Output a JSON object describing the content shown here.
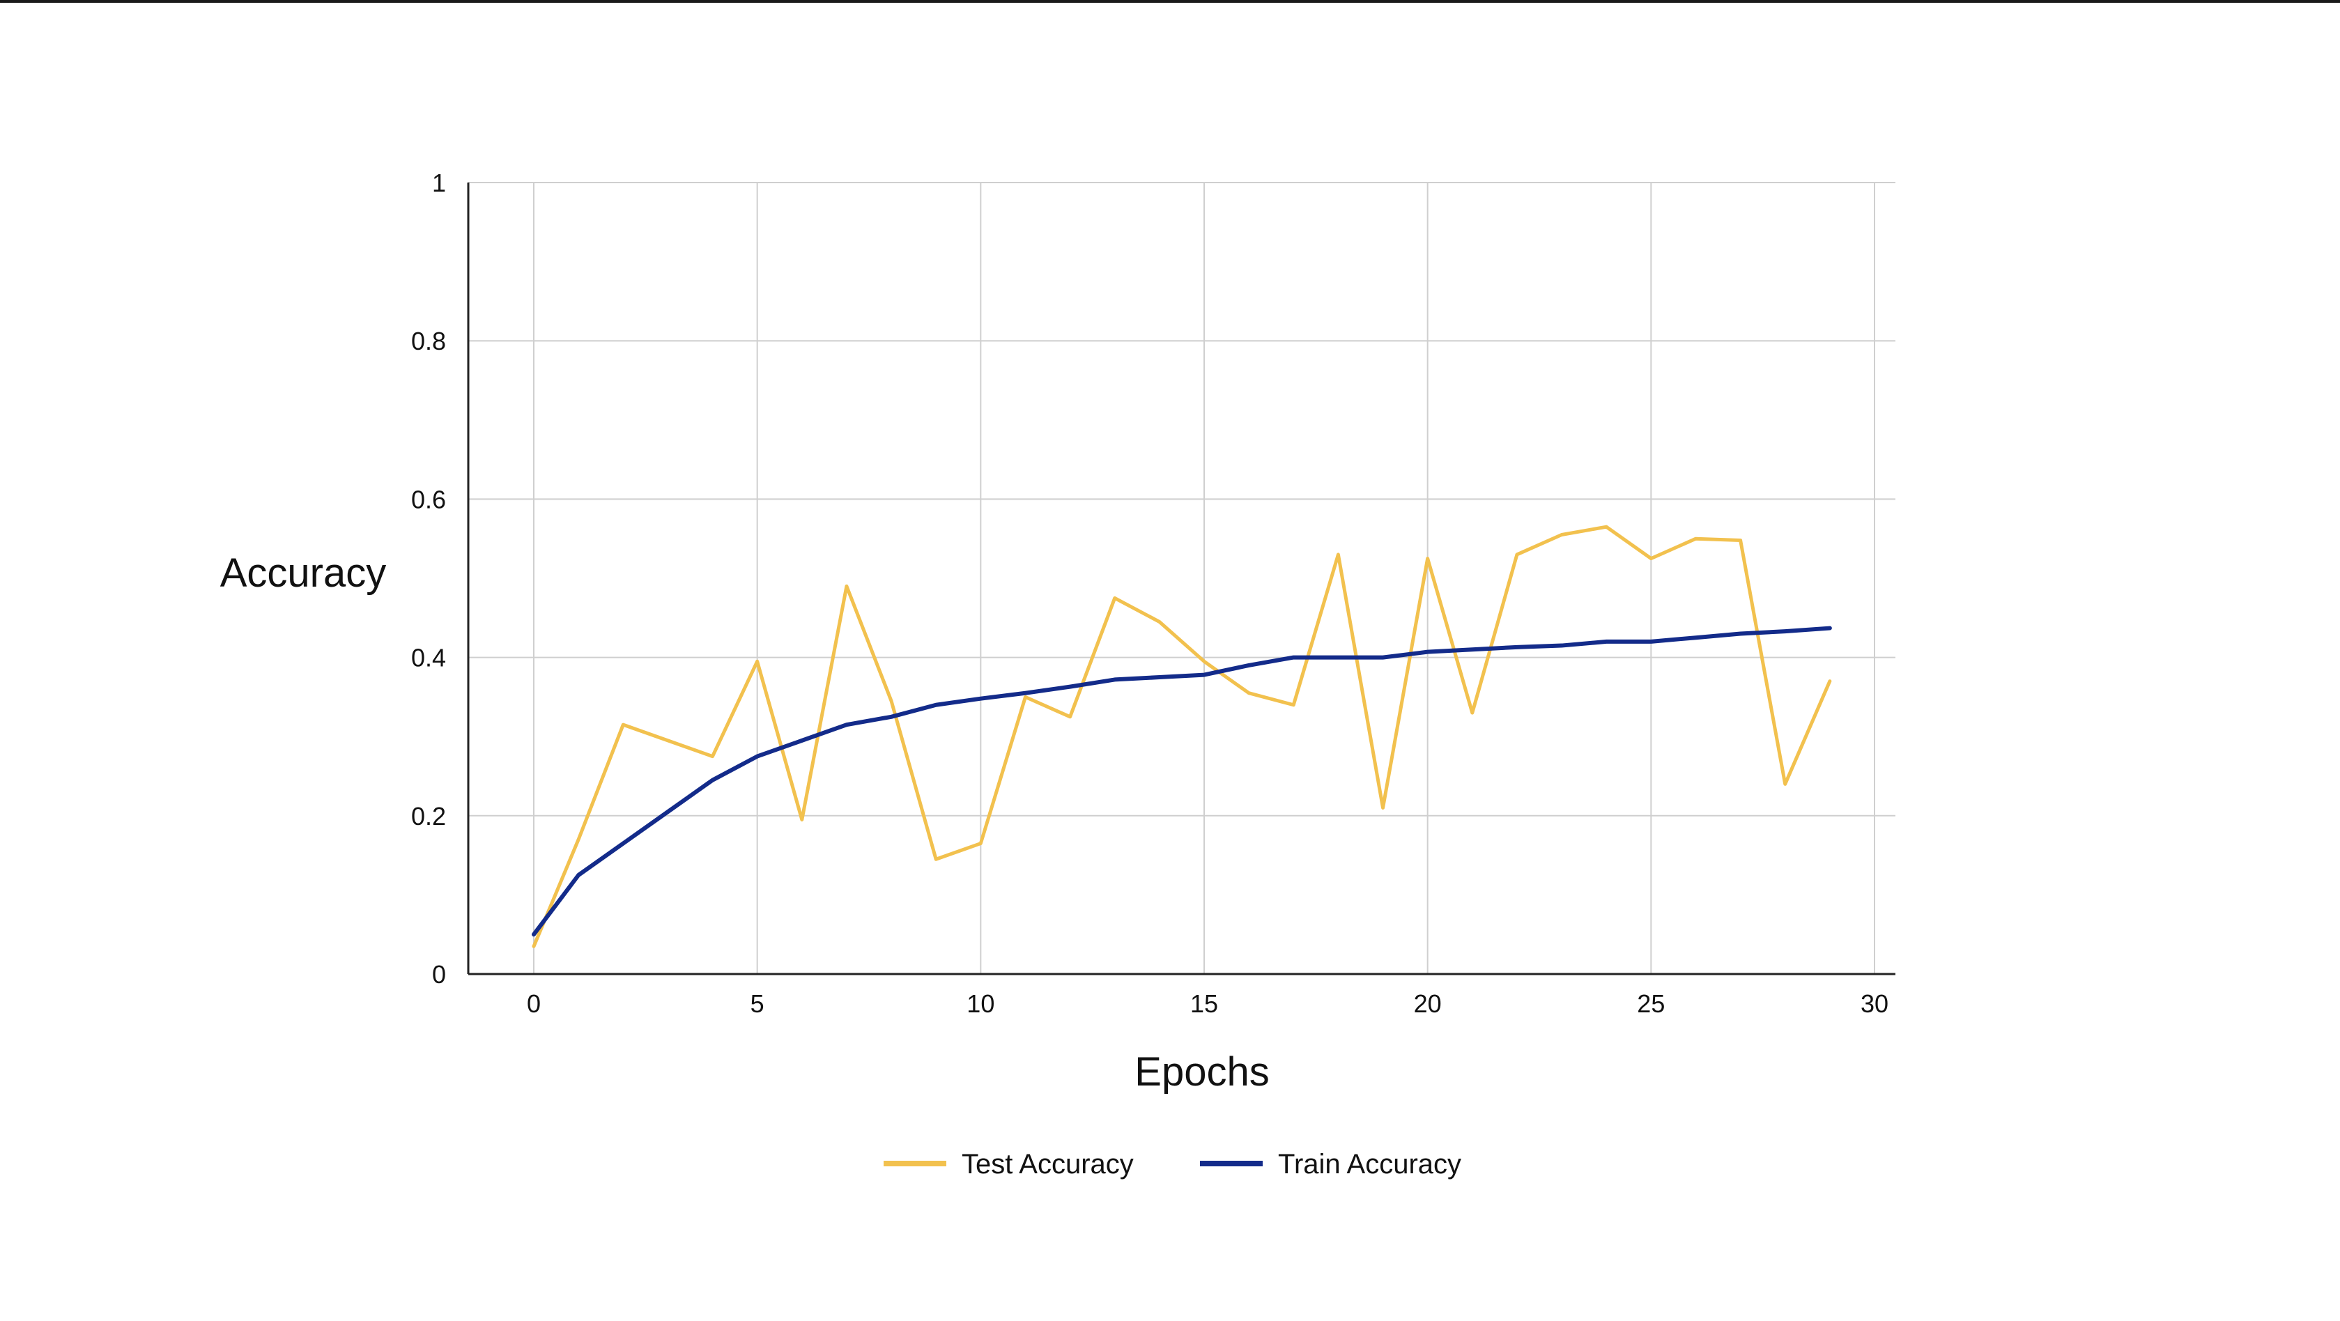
{
  "chart_data": {
    "type": "line",
    "title": "",
    "xlabel": "Epochs",
    "ylabel": "Accuracy",
    "xlim": [
      0,
      30
    ],
    "ylim": [
      0,
      1
    ],
    "x_ticks": [
      "0",
      "5",
      "10",
      "15",
      "20",
      "25",
      "30"
    ],
    "y_ticks": [
      "0",
      "0.2",
      "0.4",
      "0.6",
      "0.8",
      "1"
    ],
    "grid": true,
    "legend_position": "bottom-center",
    "x": [
      0,
      1,
      2,
      3,
      4,
      5,
      6,
      7,
      8,
      9,
      10,
      11,
      12,
      13,
      14,
      15,
      16,
      17,
      18,
      19,
      20,
      21,
      22,
      23,
      24,
      25,
      26,
      27,
      28,
      29
    ],
    "series": [
      {
        "name": "Test Accuracy",
        "color": "#f2c14e",
        "values": [
          0.035,
          0.17,
          0.315,
          0.295,
          0.275,
          0.395,
          0.195,
          0.49,
          0.345,
          0.145,
          0.165,
          0.35,
          0.325,
          0.475,
          0.445,
          0.395,
          0.355,
          0.34,
          0.53,
          0.21,
          0.525,
          0.33,
          0.53,
          0.555,
          0.565,
          0.525,
          0.55,
          0.548,
          0.24,
          0.37
        ]
      },
      {
        "name": "Train Accuracy",
        "color": "#132b8a",
        "values": [
          0.05,
          0.125,
          0.165,
          0.205,
          0.245,
          0.275,
          0.295,
          0.315,
          0.325,
          0.34,
          0.348,
          0.355,
          0.363,
          0.372,
          0.375,
          0.378,
          0.39,
          0.4,
          0.4,
          0.4,
          0.407,
          0.41,
          0.413,
          0.415,
          0.42,
          0.42,
          0.425,
          0.43,
          0.433,
          0.437
        ]
      }
    ]
  }
}
